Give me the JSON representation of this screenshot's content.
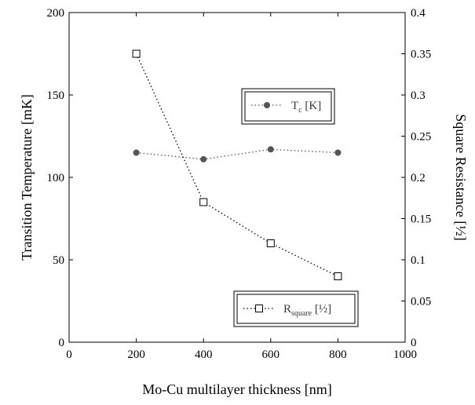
{
  "chart_data": {
    "type": "line",
    "xlabel": "Mo-Cu multilayer thickness [nm]",
    "ylabel_left": "Transition Temperature [mK]",
    "ylabel_right": "Square Resistance [½]",
    "xlim": [
      0,
      1000
    ],
    "ylim_left": [
      0,
      200
    ],
    "ylim_right": [
      0,
      0.4
    ],
    "x_ticks": [
      "0",
      "200",
      "400",
      "600",
      "800",
      "1000"
    ],
    "y_left_ticks": [
      "0",
      "50",
      "100",
      "150",
      "200"
    ],
    "y_right_ticks": [
      "0",
      "0.05",
      "0.1",
      "0.15",
      "0.2",
      "0.25",
      "0.3",
      "0.35",
      "0.4"
    ],
    "grid": false,
    "series": [
      {
        "name": "Tc [K]",
        "legend_main": "T",
        "legend_sub": "c",
        "legend_tail": " [K]",
        "axis": "left",
        "marker": "filled-circle",
        "line": "dotted",
        "color": "#555555",
        "x": [
          200,
          400,
          600,
          800
        ],
        "y": [
          115,
          111,
          117,
          115
        ]
      },
      {
        "name": "Rsquare [½]",
        "legend_main": "R",
        "legend_sub": "square",
        "legend_tail": " [½]",
        "axis": "right",
        "marker": "open-square",
        "line": "dotted",
        "color": "#000000",
        "x": [
          200,
          400,
          600,
          800
        ],
        "y": [
          0.35,
          0.17,
          0.12,
          0.08
        ]
      }
    ]
  }
}
